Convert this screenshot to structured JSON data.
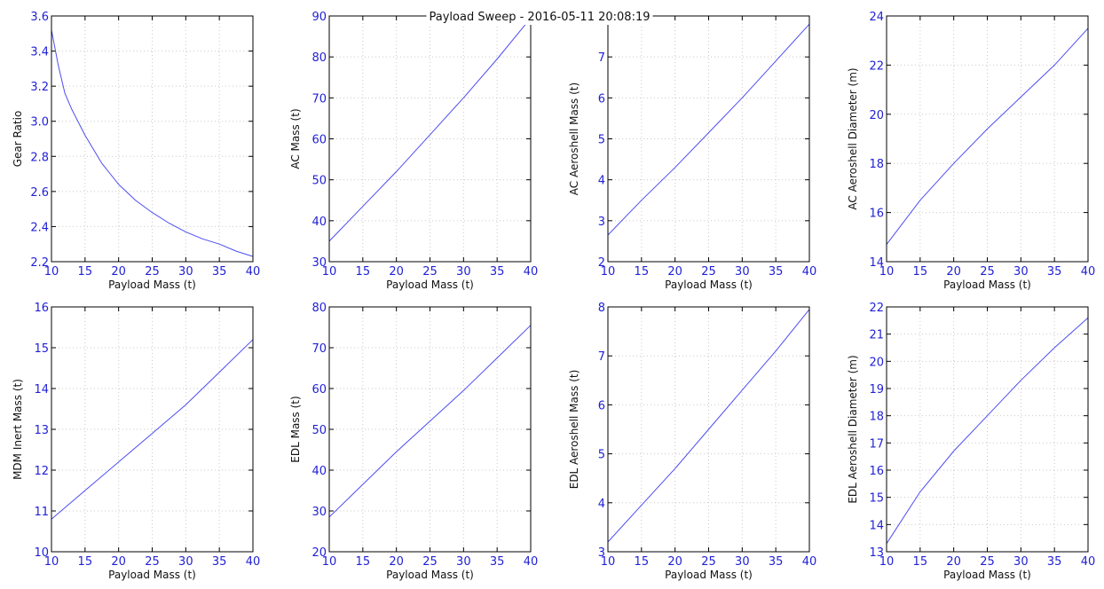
{
  "figure": {
    "title": "Payload Sweep - 2016-05-11 20:08:19"
  },
  "colors": {
    "line": "#4d4df2",
    "tick_labels": "#1f1fd6",
    "axes": "#000000",
    "grid": "#c9c9c9",
    "background": "#ffffff"
  },
  "chart_data": [
    {
      "type": "line",
      "title": "",
      "xlabel": "Payload Mass (t)",
      "ylabel": "Gear Ratio",
      "xlim": [
        10,
        40
      ],
      "ylim": [
        2.2,
        3.6
      ],
      "xticks": [
        "10",
        "15",
        "20",
        "25",
        "30",
        "35",
        "40"
      ],
      "yticks": [
        "2.2",
        "2.4",
        "2.6",
        "2.8",
        "3.0",
        "3.2",
        "3.4",
        "3.6"
      ],
      "grid": true,
      "x": [
        10,
        11,
        12,
        13,
        15,
        17.5,
        20,
        22.5,
        25,
        27.5,
        30,
        32.5,
        35,
        37.5,
        40
      ],
      "y": [
        3.52,
        3.32,
        3.16,
        3.07,
        2.92,
        2.76,
        2.64,
        2.55,
        2.48,
        2.42,
        2.37,
        2.33,
        2.3,
        2.26,
        2.23
      ]
    },
    {
      "type": "line",
      "title": "",
      "xlabel": "Payload Mass (t)",
      "ylabel": "AC Mass (t)",
      "xlim": [
        10,
        40
      ],
      "ylim": [
        30,
        90
      ],
      "xticks": [
        "10",
        "15",
        "20",
        "25",
        "30",
        "35",
        "40"
      ],
      "yticks": [
        "30",
        "40",
        "50",
        "60",
        "70",
        "80",
        "90"
      ],
      "grid": true,
      "x": [
        10,
        15,
        20,
        25,
        30,
        35,
        40
      ],
      "y": [
        35,
        43.5,
        52,
        61,
        70,
        79.5,
        89.5
      ]
    },
    {
      "type": "line",
      "title": "",
      "xlabel": "Payload Mass (t)",
      "ylabel": "AC Aeroshell Mass (t)",
      "xlim": [
        10,
        40
      ],
      "ylim": [
        2,
        8
      ],
      "xticks": [
        "10",
        "15",
        "20",
        "25",
        "30",
        "35",
        "40"
      ],
      "yticks": [
        "2",
        "3",
        "4",
        "5",
        "6",
        "7"
      ],
      "grid": true,
      "x": [
        10,
        15,
        20,
        25,
        30,
        35,
        40
      ],
      "y": [
        2.65,
        3.5,
        4.3,
        5.15,
        6.0,
        6.9,
        7.8
      ]
    },
    {
      "type": "line",
      "title": "",
      "xlabel": "Payload Mass (t)",
      "ylabel": "AC Aeroshell Diameter (m)",
      "xlim": [
        10,
        40
      ],
      "ylim": [
        14,
        24
      ],
      "xticks": [
        "10",
        "15",
        "20",
        "25",
        "30",
        "35",
        "40"
      ],
      "yticks": [
        "14",
        "16",
        "18",
        "20",
        "22",
        "24"
      ],
      "grid": true,
      "x": [
        10,
        15,
        20,
        25,
        30,
        35,
        40
      ],
      "y": [
        14.7,
        16.5,
        18.0,
        19.4,
        20.7,
        22.0,
        23.5
      ]
    },
    {
      "type": "line",
      "title": "",
      "xlabel": "Payload Mass (t)",
      "ylabel": "MDM Inert Mass (t)",
      "xlim": [
        10,
        40
      ],
      "ylim": [
        10,
        16
      ],
      "xticks": [
        "10",
        "15",
        "20",
        "25",
        "30",
        "35",
        "40"
      ],
      "yticks": [
        "10",
        "11",
        "12",
        "13",
        "14",
        "15",
        "16"
      ],
      "grid": true,
      "x": [
        10,
        15,
        20,
        25,
        30,
        35,
        40
      ],
      "y": [
        10.8,
        11.5,
        12.2,
        12.9,
        13.6,
        14.4,
        15.2
      ]
    },
    {
      "type": "line",
      "title": "",
      "xlabel": "Payload Mass (t)",
      "ylabel": "EDL Mass (t)",
      "xlim": [
        10,
        40
      ],
      "ylim": [
        20,
        80
      ],
      "xticks": [
        "10",
        "15",
        "20",
        "25",
        "30",
        "35",
        "40"
      ],
      "yticks": [
        "20",
        "30",
        "40",
        "50",
        "60",
        "70",
        "80"
      ],
      "grid": true,
      "x": [
        10,
        15,
        20,
        25,
        30,
        35,
        40
      ],
      "y": [
        28.5,
        36.5,
        44.5,
        52,
        59.5,
        67.5,
        75.5
      ]
    },
    {
      "type": "line",
      "title": "",
      "xlabel": "Payload Mass (t)",
      "ylabel": "EDL Aeroshell Mass (t)",
      "xlim": [
        10,
        40
      ],
      "ylim": [
        3,
        8
      ],
      "xticks": [
        "10",
        "15",
        "20",
        "25",
        "30",
        "35",
        "40"
      ],
      "yticks": [
        "3",
        "4",
        "5",
        "6",
        "7",
        "8"
      ],
      "grid": true,
      "x": [
        10,
        15,
        20,
        25,
        30,
        35,
        40
      ],
      "y": [
        3.2,
        3.95,
        4.7,
        5.5,
        6.3,
        7.1,
        7.95
      ]
    },
    {
      "type": "line",
      "title": "",
      "xlabel": "Payload Mass (t)",
      "ylabel": "EDL Aeroshell Diameter (m)",
      "xlim": [
        10,
        40
      ],
      "ylim": [
        13,
        22
      ],
      "xticks": [
        "10",
        "15",
        "20",
        "25",
        "30",
        "35",
        "40"
      ],
      "yticks": [
        "13",
        "14",
        "15",
        "16",
        "17",
        "18",
        "19",
        "20",
        "21",
        "22"
      ],
      "grid": true,
      "x": [
        10,
        15,
        20,
        25,
        30,
        35,
        40
      ],
      "y": [
        13.3,
        15.2,
        16.7,
        18.0,
        19.3,
        20.5,
        21.6
      ]
    }
  ]
}
